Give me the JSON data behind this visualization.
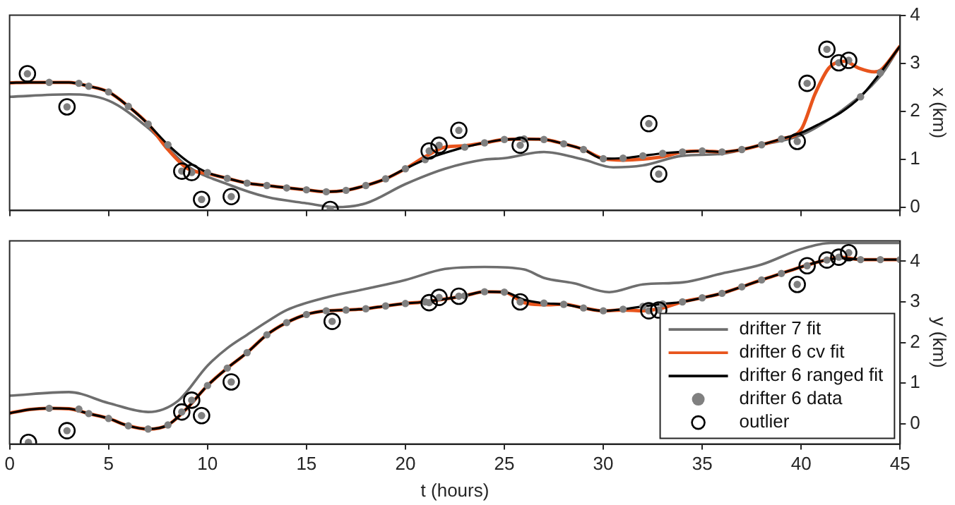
{
  "chart_data": [
    {
      "type": "line",
      "ylabel": "x (km)",
      "xlim": [
        0,
        45
      ],
      "xticks": [
        0,
        5,
        10,
        15,
        20,
        25,
        30,
        35,
        40,
        45
      ],
      "ylim": [
        -0.07,
        4
      ],
      "yticks": [
        0,
        1,
        2,
        3,
        4
      ],
      "grid": false,
      "legend": false,
      "tick_labels": "y",
      "series": [
        {
          "type": "line",
          "color": "#6e6e6e",
          "marker": "none",
          "x": [
            0,
            3,
            5,
            7,
            9,
            11,
            13,
            15,
            16.5,
            18,
            20,
            22,
            24,
            25,
            27,
            29,
            30.5,
            32,
            34,
            36,
            38,
            40,
            42,
            44,
            45
          ],
          "values": [
            2.3,
            2.35,
            2.22,
            1.65,
            0.85,
            0.48,
            0.21,
            0.08,
            0,
            0.08,
            0.48,
            0.8,
            0.99,
            1.02,
            1.15,
            0.99,
            0.83,
            0.87,
            1.07,
            1.11,
            1.3,
            1.5,
            2.0,
            2.73,
            3.36
          ]
        },
        {
          "type": "line",
          "color": "#e8541c",
          "marker": "none",
          "x": [
            0,
            1,
            2,
            3,
            4,
            5,
            6,
            7,
            8,
            9,
            10,
            11,
            12,
            13,
            14,
            15,
            16,
            17,
            18,
            19,
            20,
            21,
            22,
            23,
            24,
            25,
            26,
            27,
            28,
            29,
            30,
            31,
            32,
            33,
            34,
            35,
            36,
            37,
            38,
            39,
            40,
            40.7,
            41.4,
            42.2,
            42.9,
            43.7,
            44,
            45
          ],
          "values": [
            2.59,
            2.6,
            2.6,
            2.6,
            2.52,
            2.4,
            2.1,
            1.73,
            1.2,
            0.8,
            0.7,
            0.6,
            0.5,
            0.45,
            0.4,
            0.36,
            0.32,
            0.35,
            0.45,
            0.59,
            0.8,
            1.05,
            1.25,
            1.28,
            1.34,
            1.41,
            1.42,
            1.41,
            1.32,
            1.2,
            1.01,
            0.98,
            1.0,
            1.05,
            1.15,
            1.17,
            1.15,
            1.2,
            1.3,
            1.42,
            1.62,
            2.36,
            2.9,
            3.04,
            2.9,
            2.82,
            2.85,
            3.36
          ]
        },
        {
          "type": "line",
          "color": "#000000",
          "marker": "none",
          "x": [
            0,
            1,
            2,
            3,
            4,
            5,
            6,
            7,
            8,
            9,
            10,
            11,
            12,
            13,
            14,
            15,
            16,
            17,
            18,
            19,
            20,
            21,
            22,
            23,
            24,
            25,
            26,
            27,
            28,
            29,
            30,
            31,
            32,
            33,
            34,
            35,
            36,
            37,
            38,
            39,
            40,
            41,
            42,
            43,
            44,
            45
          ],
          "values": [
            2.59,
            2.6,
            2.6,
            2.6,
            2.52,
            2.4,
            2.1,
            1.73,
            1.3,
            0.95,
            0.72,
            0.6,
            0.5,
            0.45,
            0.4,
            0.36,
            0.32,
            0.35,
            0.45,
            0.59,
            0.8,
            0.99,
            1.13,
            1.25,
            1.34,
            1.41,
            1.42,
            1.41,
            1.32,
            1.2,
            1.01,
            1.02,
            1.07,
            1.12,
            1.15,
            1.17,
            1.15,
            1.2,
            1.3,
            1.42,
            1.55,
            1.75,
            1.97,
            2.3,
            2.8,
            3.36
          ]
        },
        {
          "type": "scatter",
          "color": "#808080",
          "marker": "circle",
          "x": [
            2,
            3.5,
            4,
            5,
            6,
            7,
            8,
            10,
            11,
            12,
            13,
            14,
            15,
            16,
            17,
            18,
            19,
            20,
            21,
            23,
            24,
            25,
            26,
            27,
            28,
            29,
            30,
            31,
            32,
            33,
            34,
            35,
            36,
            37,
            38,
            39,
            43,
            44,
            0.9,
            2.9,
            8.7,
            9.2,
            9.7,
            11.2,
            16.2,
            21.2,
            21.7,
            22.7,
            25.8,
            32.3,
            32.8,
            39.8,
            40.3,
            41.3,
            41.9,
            42.4
          ],
          "values": [
            2.6,
            2.58,
            2.52,
            2.4,
            2.1,
            1.73,
            1.3,
            0.72,
            0.6,
            0.5,
            0.45,
            0.4,
            0.36,
            0.32,
            0.35,
            0.45,
            0.59,
            0.8,
            0.99,
            1.25,
            1.34,
            1.41,
            1.42,
            1.41,
            1.32,
            1.2,
            1.01,
            1.02,
            1.07,
            1.12,
            1.15,
            1.17,
            1.15,
            1.2,
            1.3,
            1.42,
            2.3,
            2.8,
            2.78,
            2.09,
            0.75,
            0.72,
            0.16,
            0.22,
            -0.05,
            1.17,
            1.29,
            1.6,
            1.29,
            1.74,
            0.69,
            1.37,
            2.58,
            3.29,
            3.01,
            3.06
          ]
        },
        {
          "type": "scatter",
          "color": "#000000",
          "marker": "circle",
          "x": [
            0.9,
            2.9,
            8.7,
            9.2,
            9.7,
            11.2,
            16.2,
            21.2,
            21.7,
            22.7,
            25.8,
            32.3,
            32.8,
            39.8,
            40.3,
            41.3,
            41.9,
            42.4
          ],
          "values": [
            2.78,
            2.09,
            0.75,
            0.72,
            0.16,
            0.22,
            -0.05,
            1.17,
            1.29,
            1.6,
            1.29,
            1.74,
            0.69,
            1.37,
            2.58,
            3.29,
            3.01,
            3.06
          ]
        }
      ]
    },
    {
      "type": "line",
      "xlabel": "t (hours)",
      "ylabel": "y (km)",
      "xlim": [
        0,
        45
      ],
      "xticks": [
        0,
        5,
        10,
        15,
        20,
        25,
        30,
        35,
        40,
        45
      ],
      "ylim": [
        -0.5,
        4.5
      ],
      "yticks": [
        0,
        1,
        2,
        3,
        4
      ],
      "grid": false,
      "legend": "bottom right",
      "series": [
        {
          "name": "drifter 7 fit",
          "type": "line",
          "color": "#6e6e6e",
          "marker": "none",
          "x": [
            0,
            3,
            5,
            7,
            8.5,
            10,
            11,
            12,
            13,
            14,
            16,
            18,
            20,
            22,
            24,
            26,
            27,
            28.5,
            30.3,
            32,
            34,
            36,
            38,
            40,
            41.5,
            45
          ],
          "values": [
            0.69,
            0.78,
            0.51,
            0.29,
            0.56,
            1.43,
            1.86,
            2.19,
            2.51,
            2.8,
            3.11,
            3.32,
            3.54,
            3.81,
            3.86,
            3.8,
            3.59,
            3.46,
            3.24,
            3.43,
            3.48,
            3.7,
            3.92,
            4.3,
            4.45,
            4.45
          ]
        },
        {
          "name": "drifter 6 cv fit",
          "type": "line",
          "color": "#e8541c",
          "marker": "none",
          "x": [
            0,
            1,
            2,
            3,
            4,
            5,
            6,
            7,
            8,
            9,
            10,
            11,
            12,
            13,
            14,
            15,
            16,
            17,
            18,
            19,
            20,
            21,
            22,
            23,
            24,
            25,
            26,
            27,
            28,
            29,
            30,
            31,
            32,
            33,
            34,
            35,
            36,
            37,
            38,
            39,
            40,
            41,
            42,
            43,
            44,
            45
          ],
          "values": [
            0.26,
            0.35,
            0.38,
            0.37,
            0.25,
            0.13,
            -0.05,
            -0.13,
            -0.03,
            0.4,
            0.94,
            1.37,
            1.75,
            2.19,
            2.49,
            2.69,
            2.78,
            2.8,
            2.83,
            2.9,
            2.96,
            3.0,
            3.07,
            3.15,
            3.25,
            3.24,
            2.98,
            2.93,
            2.94,
            2.85,
            2.78,
            2.8,
            2.78,
            2.85,
            3.0,
            3.1,
            3.21,
            3.37,
            3.54,
            3.7,
            3.86,
            4.0,
            4.1,
            4.04,
            4.04,
            4.04
          ]
        },
        {
          "name": "drifter 6 ranged fit",
          "type": "line",
          "color": "#000000",
          "marker": "none",
          "x": [
            0,
            1,
            2,
            3,
            4,
            5,
            6,
            7,
            8,
            9,
            10,
            11,
            12,
            13,
            14,
            15,
            16,
            17,
            18,
            19,
            20,
            21,
            22,
            23,
            24,
            25,
            26,
            27,
            28,
            29,
            30,
            31,
            32,
            33,
            34,
            35,
            36,
            37,
            38,
            39,
            40,
            41,
            42,
            43,
            44,
            45
          ],
          "values": [
            0.26,
            0.35,
            0.38,
            0.37,
            0.25,
            0.13,
            -0.05,
            -0.13,
            -0.03,
            0.4,
            0.94,
            1.37,
            1.75,
            2.19,
            2.49,
            2.69,
            2.78,
            2.8,
            2.83,
            2.9,
            2.96,
            3.0,
            3.07,
            3.15,
            3.25,
            3.24,
            3.05,
            2.97,
            2.94,
            2.85,
            2.78,
            2.82,
            2.89,
            2.95,
            3.0,
            3.1,
            3.21,
            3.37,
            3.54,
            3.7,
            3.86,
            4.0,
            4.08,
            4.04,
            4.04,
            4.04
          ]
        },
        {
          "name": "drifter 6 data",
          "type": "scatter",
          "color": "#808080",
          "marker": "circle",
          "x": [
            2,
            3.5,
            4,
            5,
            6,
            7,
            8,
            10,
            11,
            12,
            13,
            14,
            15,
            16,
            17,
            18,
            19,
            20,
            21,
            23,
            24,
            25,
            27,
            28,
            29,
            30,
            31,
            32,
            33,
            34,
            35,
            36,
            37,
            38,
            39,
            43,
            44,
            45,
            0.95,
            2.9,
            8.7,
            9.2,
            9.7,
            11.2,
            16.3,
            21.2,
            21.7,
            22.7,
            25.8,
            32.3,
            32.8,
            39.8,
            40.3,
            41.3,
            41.9,
            42.4
          ],
          "values": [
            0.38,
            0.36,
            0.25,
            0.13,
            -0.05,
            -0.13,
            -0.03,
            0.94,
            1.37,
            1.75,
            2.19,
            2.49,
            2.69,
            2.78,
            2.8,
            2.83,
            2.9,
            2.96,
            3.0,
            3.15,
            3.25,
            3.24,
            2.97,
            2.94,
            2.85,
            2.78,
            2.82,
            2.89,
            2.95,
            3.0,
            3.1,
            3.21,
            3.37,
            3.54,
            3.7,
            4.04,
            4.04,
            4.04,
            -0.46,
            -0.17,
            0.29,
            0.58,
            0.2,
            1.03,
            2.52,
            2.98,
            3.11,
            3.14,
            3.0,
            2.78,
            2.8,
            3.43,
            3.89,
            4.03,
            4.1,
            4.21
          ]
        },
        {
          "name": "outlier",
          "type": "scatter",
          "color": "#000000",
          "marker": "circle",
          "x": [
            0.95,
            2.9,
            8.7,
            9.2,
            9.7,
            11.2,
            16.3,
            21.2,
            21.7,
            22.7,
            25.8,
            32.3,
            32.8,
            39.8,
            40.3,
            41.3,
            41.9,
            42.4
          ],
          "values": [
            -0.46,
            -0.17,
            0.29,
            0.58,
            0.2,
            1.03,
            2.52,
            2.98,
            3.11,
            3.14,
            3.0,
            2.78,
            2.8,
            3.43,
            3.89,
            4.03,
            4.1,
            4.21
          ]
        }
      ]
    }
  ]
}
